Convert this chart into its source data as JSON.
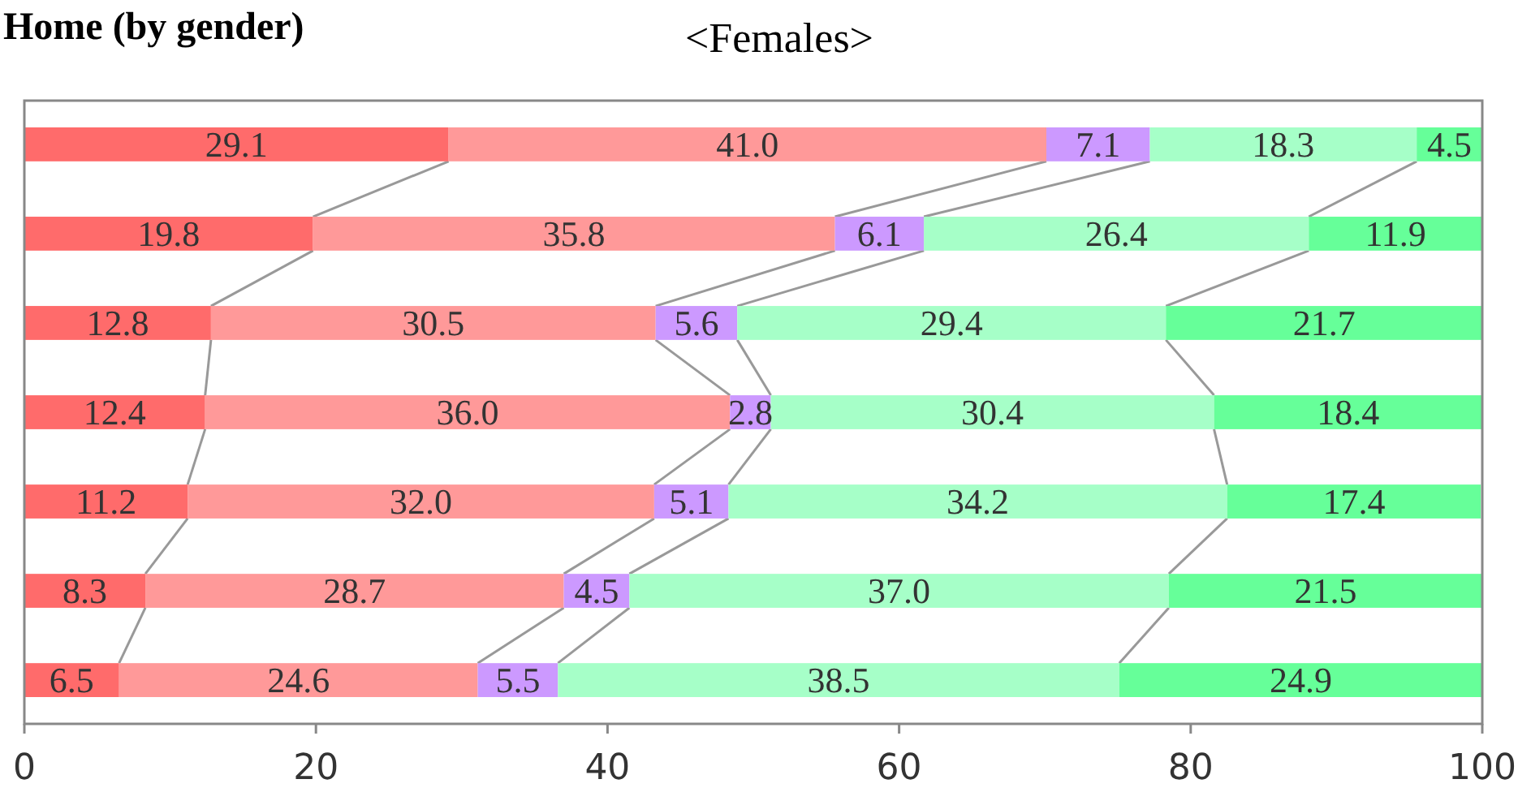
{
  "chart_data": {
    "type": "bar",
    "orientation": "horizontal",
    "stacked": true,
    "title": "Home (by gender)",
    "subtitle": "<Females>",
    "categories": [
      null,
      null,
      null,
      null,
      null,
      null,
      null
    ],
    "series": [
      {
        "color": "#ff6b6b",
        "values": [
          29.1,
          19.8,
          12.8,
          12.4,
          11.2,
          8.3,
          6.5
        ],
        "value_labels": [
          "29.1",
          "19.8",
          "12.8",
          "12.4",
          "11.2",
          "8.3",
          "6.5"
        ]
      },
      {
        "color": "#ff9999",
        "values": [
          41.0,
          35.8,
          30.5,
          36.0,
          32.0,
          28.7,
          24.6
        ],
        "value_labels": [
          "41.0",
          "35.8",
          "30.5",
          "36.0",
          "32.0",
          "28.7",
          "24.6"
        ]
      },
      {
        "color": "#cc99ff",
        "values": [
          7.1,
          6.1,
          5.6,
          2.8,
          5.1,
          4.5,
          5.5
        ],
        "value_labels": [
          "7.1",
          "6.1",
          "5.6",
          "2.8",
          "5.1",
          "4.5",
          "5.5"
        ]
      },
      {
        "color": "#a6ffc8",
        "values": [
          18.3,
          26.4,
          29.4,
          30.4,
          34.2,
          37.0,
          38.5
        ],
        "value_labels": [
          "18.3",
          "26.4",
          "29.4",
          "30.4",
          "34.2",
          "37.0",
          "38.5"
        ]
      },
      {
        "color": "#66ff99",
        "values": [
          4.5,
          11.9,
          21.7,
          18.4,
          17.4,
          21.5,
          24.9
        ],
        "value_labels": [
          "4.5",
          "11.9",
          "21.7",
          "18.4",
          "17.4",
          "21.5",
          "24.9"
        ]
      }
    ],
    "xlim": [
      0,
      100
    ],
    "xticks": [
      0,
      20,
      40,
      60,
      80,
      100
    ],
    "grid": false
  }
}
